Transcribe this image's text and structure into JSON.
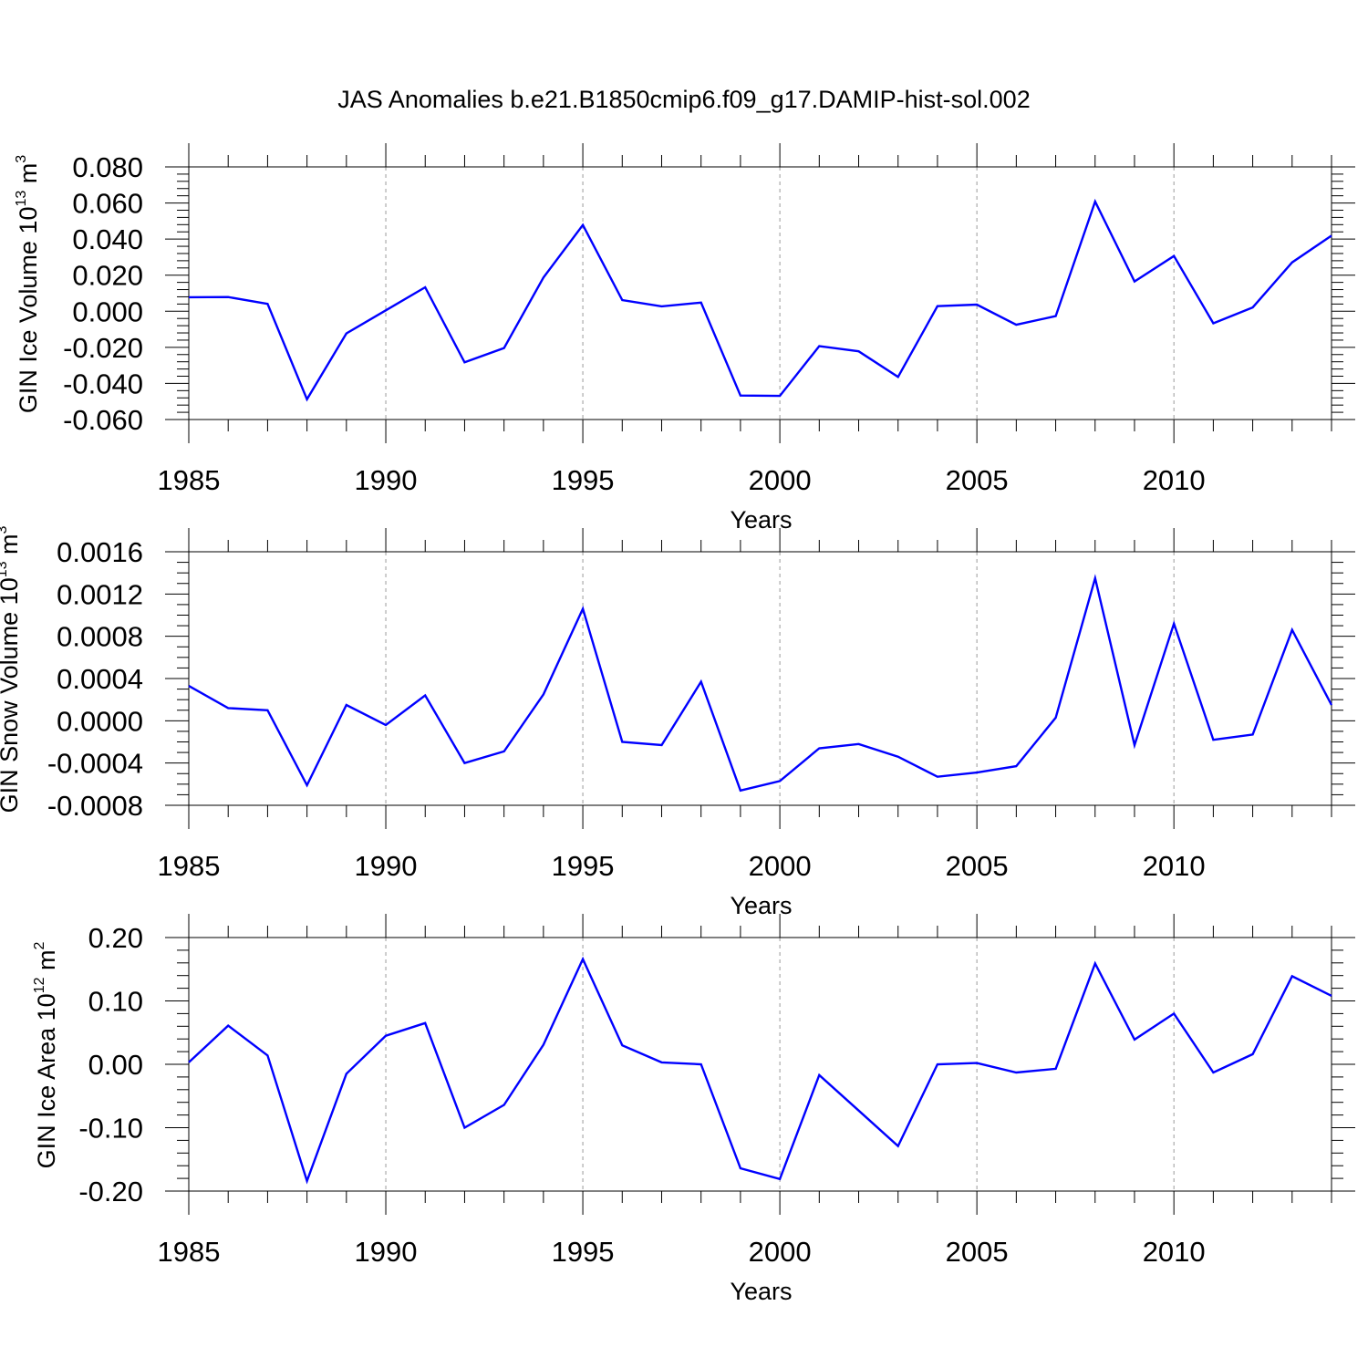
{
  "title": "JAS Anomalies b.e21.B1850cmip6.f09_g17.DAMIP-hist-sol.002",
  "colors": {
    "line": "#0000ff",
    "grid": "#9a9a9a"
  },
  "chart_data": [
    {
      "type": "line",
      "ylabel": "GIN Ice Volume 10",
      "ylabel_exp": "13",
      "ylabel_unit": " m",
      "ylabel_unit_exp": "3",
      "xlabel": "Years",
      "ylim": [
        -0.06,
        0.08
      ],
      "yticks": [
        -0.06,
        -0.04,
        -0.02,
        0.0,
        0.02,
        0.04,
        0.06,
        0.08
      ],
      "ytick_labels": [
        "-0.060",
        "-0.040",
        "-0.020",
        "0.000",
        "0.020",
        "0.040",
        "0.060",
        "0.080"
      ],
      "yminor_step": 0.004,
      "x": [
        1985,
        1986,
        1987,
        1988,
        1989,
        1990,
        1991,
        1992,
        1993,
        1994,
        1995,
        1996,
        1997,
        1998,
        1999,
        2000,
        2001,
        2002,
        2003,
        2004,
        2005,
        2006,
        2007,
        2008,
        2009,
        2010,
        2011,
        2012,
        2013,
        2014
      ],
      "values": [
        0.0078,
        0.0079,
        0.0041,
        -0.0488,
        -0.0123,
        0.0005,
        0.0133,
        -0.0283,
        -0.0204,
        0.0187,
        0.0478,
        0.0062,
        0.0027,
        0.0048,
        -0.0467,
        -0.0469,
        -0.0193,
        -0.0222,
        -0.0364,
        0.0028,
        0.0037,
        -0.0075,
        -0.0027,
        0.0608,
        0.0165,
        0.0306,
        -0.0067,
        0.0021,
        0.0271,
        0.0419
      ]
    },
    {
      "type": "line",
      "ylabel": "GIN Snow Volume 10",
      "ylabel_exp": "13",
      "ylabel_unit": " m",
      "ylabel_unit_exp": "3",
      "xlabel": "Years",
      "ylim": [
        -0.0008,
        0.0016
      ],
      "yticks": [
        -0.0008,
        -0.0004,
        0.0,
        0.0004,
        0.0008,
        0.0012,
        0.0016
      ],
      "ytick_labels": [
        "-0.0008",
        "-0.0004",
        "0.0000",
        "0.0004",
        "0.0008",
        "0.0012",
        "0.0016"
      ],
      "yminor_step": 0.0001,
      "x": [
        1985,
        1986,
        1987,
        1988,
        1989,
        1990,
        1991,
        1992,
        1993,
        1994,
        1995,
        1996,
        1997,
        1998,
        1999,
        2000,
        2001,
        2002,
        2003,
        2004,
        2005,
        2006,
        2007,
        2008,
        2009,
        2010,
        2011,
        2012,
        2013,
        2014
      ],
      "values": [
        0.00033,
        0.00012,
        0.0001,
        -0.00061,
        0.00015,
        -4e-05,
        0.00024,
        -0.0004,
        -0.00029,
        0.00025,
        0.00106,
        -0.0002,
        -0.00023,
        0.00037,
        -0.00066,
        -0.00057,
        -0.00026,
        -0.00022,
        -0.00034,
        -0.00053,
        -0.00049,
        -0.00043,
        3e-05,
        0.00135,
        -0.00023,
        0.00092,
        -0.00018,
        -0.00013,
        0.00086,
        0.00015
      ]
    },
    {
      "type": "line",
      "ylabel": "GIN Ice Area 10",
      "ylabel_exp": "12",
      "ylabel_unit": " m",
      "ylabel_unit_exp": "2",
      "xlabel": "Years",
      "ylim": [
        -0.2,
        0.2
      ],
      "yticks": [
        -0.2,
        -0.1,
        0.0,
        0.1,
        0.2
      ],
      "ytick_labels": [
        "-0.20",
        "-0.10",
        "0.00",
        "0.10",
        "0.20"
      ],
      "yminor_step": 0.02,
      "x": [
        1985,
        1986,
        1987,
        1988,
        1989,
        1990,
        1991,
        1992,
        1993,
        1994,
        1995,
        1996,
        1997,
        1998,
        1999,
        2000,
        2001,
        2002,
        2003,
        2004,
        2005,
        2006,
        2007,
        2008,
        2009,
        2010,
        2011,
        2012,
        2013,
        2014
      ],
      "values": [
        0.003,
        0.061,
        0.014,
        -0.184,
        -0.015,
        0.045,
        0.065,
        -0.1,
        -0.064,
        0.031,
        0.166,
        0.03,
        0.003,
        0.0,
        -0.164,
        -0.181,
        -0.017,
        -0.073,
        -0.129,
        0.0,
        0.002,
        -0.013,
        -0.007,
        0.159,
        0.039,
        0.08,
        -0.013,
        0.016,
        0.139,
        0.108
      ]
    }
  ],
  "xaxis": {
    "min": 1985,
    "max": 2014,
    "major_ticks": [
      1985,
      1990,
      1995,
      2000,
      2005,
      2010
    ],
    "major_labels": [
      "1985",
      "1990",
      "1995",
      "2000",
      "2005",
      "2010"
    ],
    "minor_step": 1,
    "grid_years": [
      1990,
      1995,
      2000,
      2005,
      2010
    ]
  }
}
